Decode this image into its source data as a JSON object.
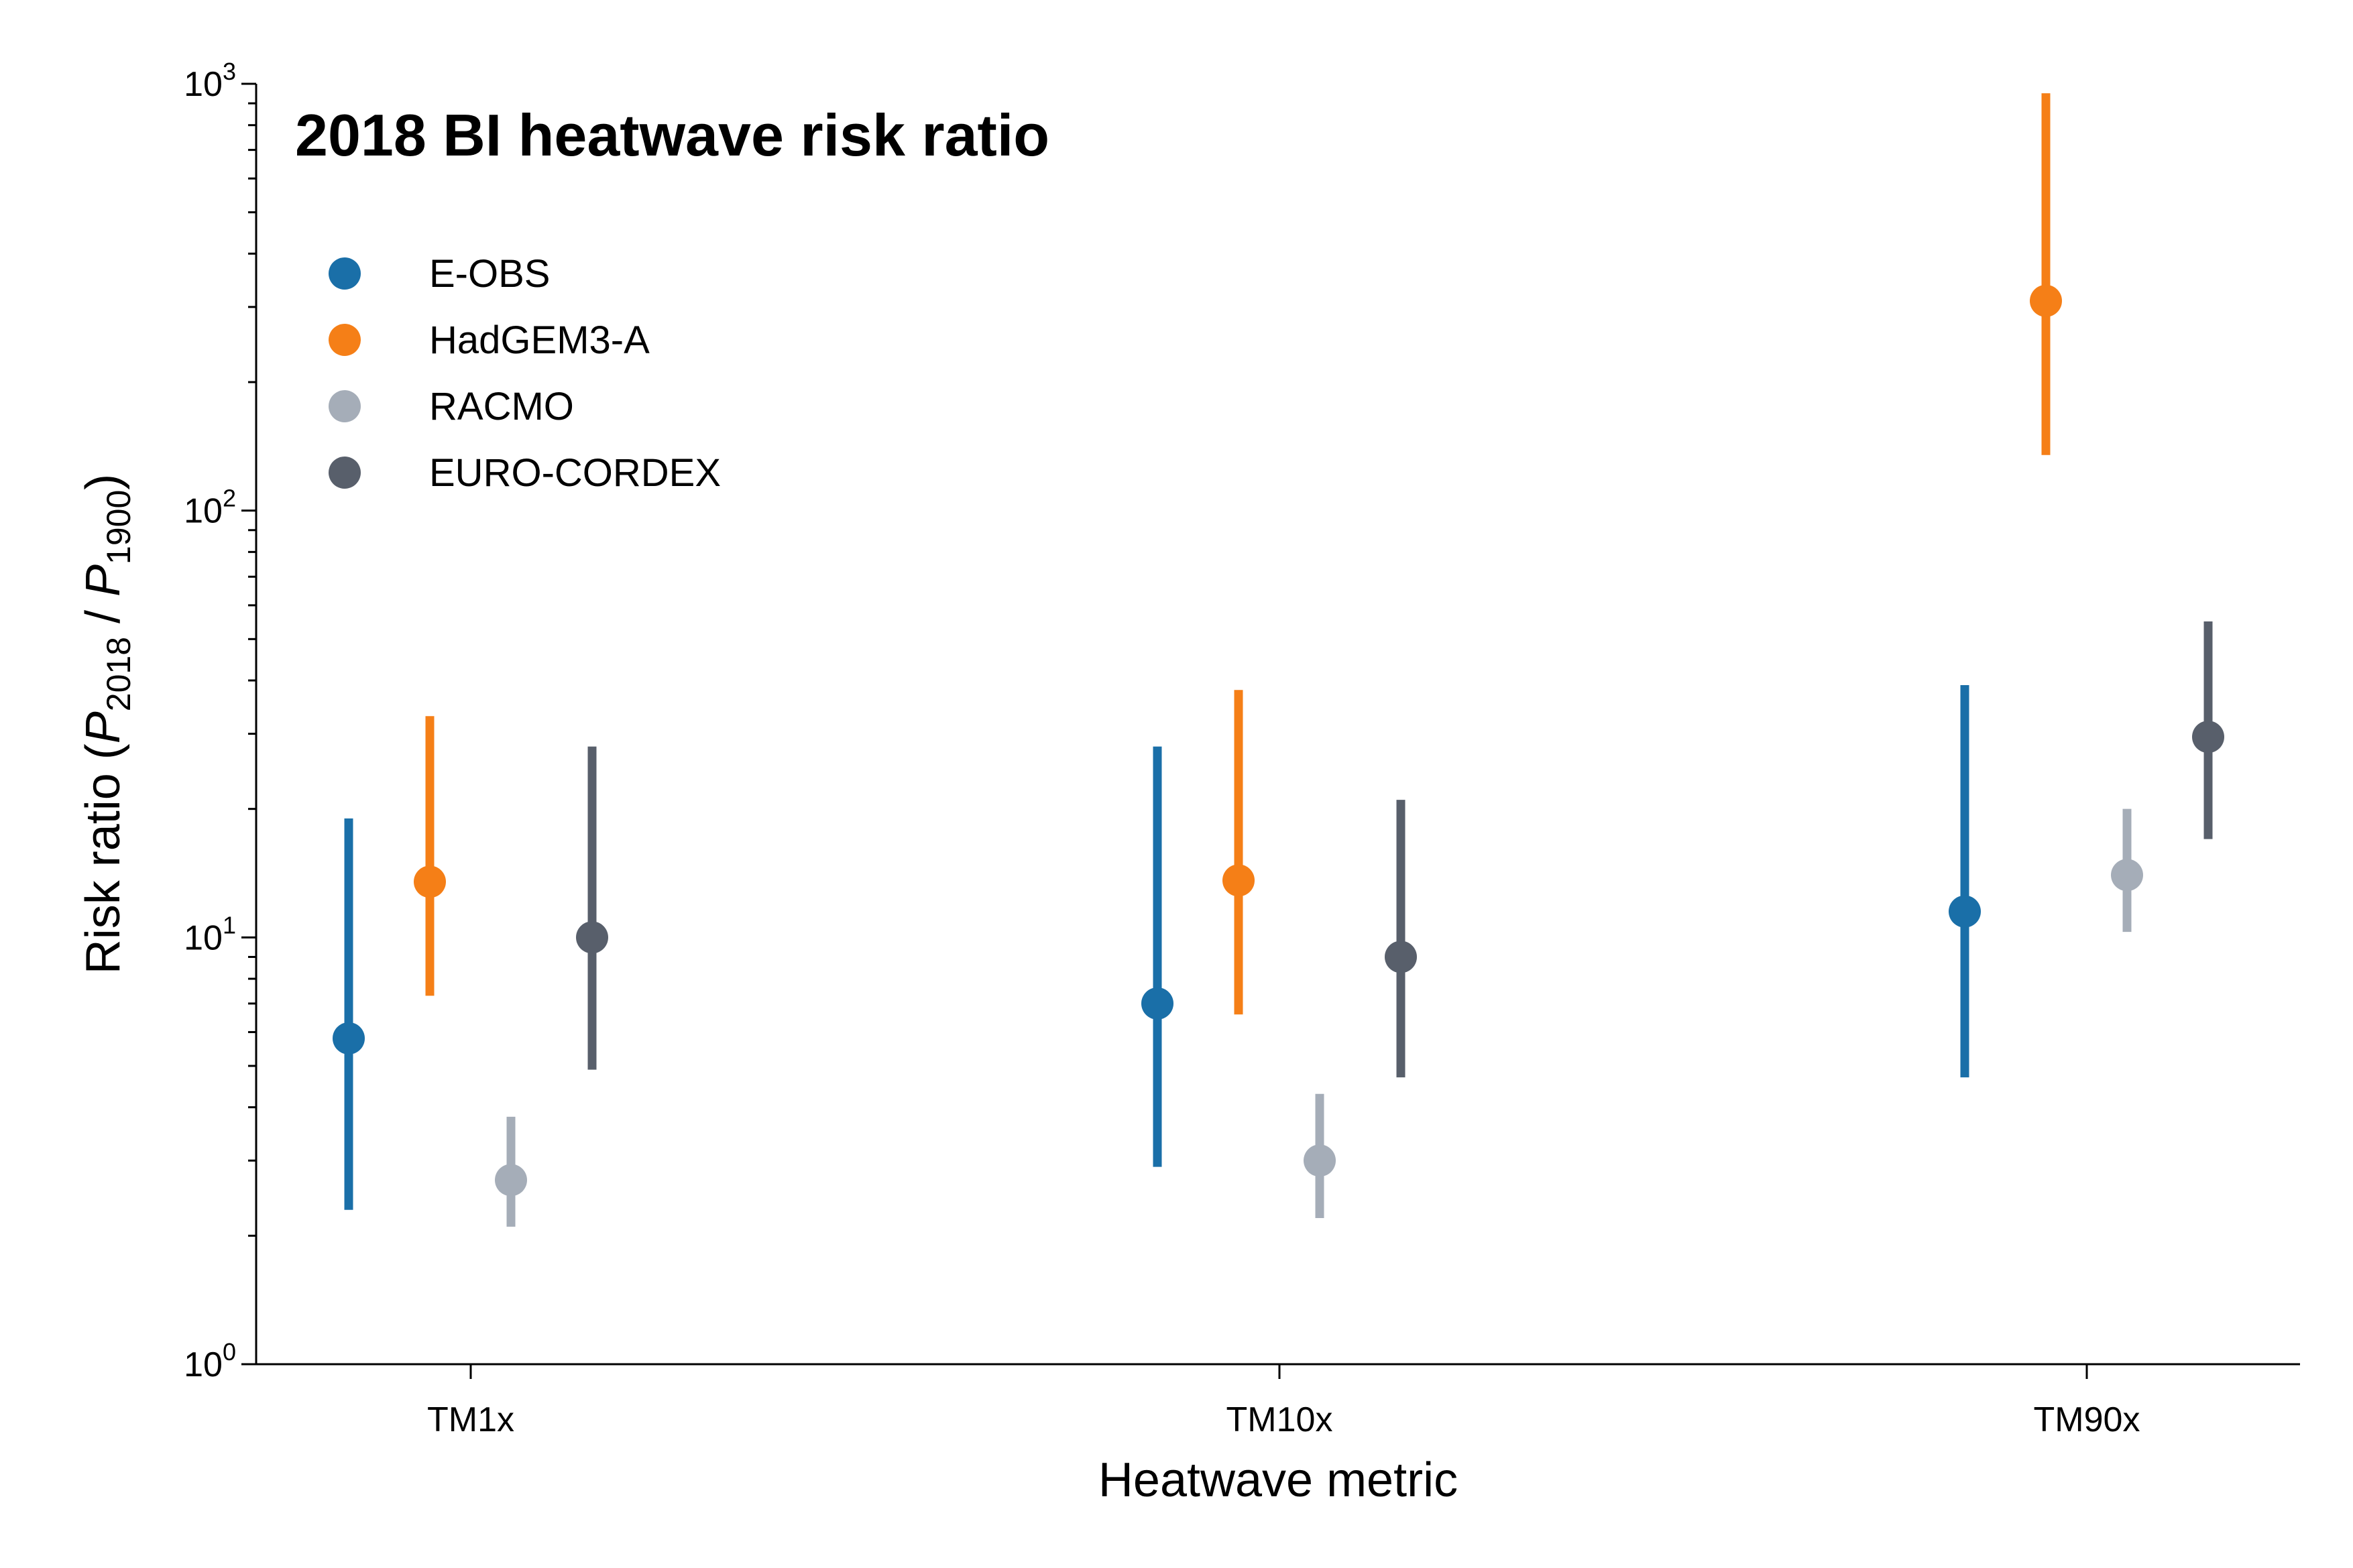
{
  "chart_data": {
    "type": "scatter",
    "title": "2018 BI heatwave risk ratio",
    "xlabel": "Heatwave metric",
    "ylabel": {
      "prefix": "Risk ratio (",
      "p1": "P",
      "sub1": "2018",
      "mid": " / ",
      "p2": "P",
      "sub2": "1900",
      "suffix": ")"
    },
    "yscale": "log",
    "ylim": [
      1,
      1000
    ],
    "yticks": [
      {
        "base": "10",
        "exp": "0",
        "value": 1
      },
      {
        "base": "10",
        "exp": "1",
        "value": 10
      },
      {
        "base": "10",
        "exp": "2",
        "value": 100
      },
      {
        "base": "10",
        "exp": "3",
        "value": 1000
      }
    ],
    "categories": [
      "TM1x",
      "TM10x",
      "TM90x"
    ],
    "legend": "upper-left",
    "series": [
      {
        "name": "E-OBS",
        "color": "#1a6fa8",
        "values": [
          5.8,
          7.0,
          11.5
        ],
        "low": [
          2.3,
          2.9,
          4.7
        ],
        "high": [
          19.0,
          28.0,
          39.0
        ]
      },
      {
        "name": "HadGEM3-A",
        "color": "#f57f17",
        "values": [
          13.5,
          13.6,
          310
        ],
        "low": [
          7.3,
          6.6,
          135
        ],
        "high": [
          33.0,
          38.0,
          950
        ]
      },
      {
        "name": "RACMO",
        "color": "#a5adb8",
        "values": [
          2.7,
          3.0,
          14.0
        ],
        "low": [
          2.1,
          2.2,
          10.3
        ],
        "high": [
          3.8,
          4.3,
          20.0
        ]
      },
      {
        "name": "EURO-CORDEX",
        "color": "#585f6b",
        "values": [
          10.0,
          9.0,
          29.5
        ],
        "low": [
          4.9,
          4.7,
          17.0
        ],
        "high": [
          28.0,
          21.0,
          55.0
        ]
      }
    ]
  }
}
